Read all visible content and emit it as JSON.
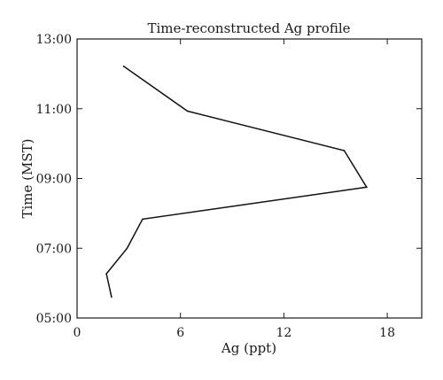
{
  "chart_data": {
    "type": "line",
    "title": "Time-reconstructed Ag profile",
    "xlabel": "Ag (ppt)",
    "ylabel": "Time (MST)",
    "xlim": [
      0,
      20
    ],
    "ylim": [
      "05:00",
      "13:00"
    ],
    "x_ticks": [
      {
        "value": 0,
        "label": "0"
      },
      {
        "value": 6,
        "label": "6"
      },
      {
        "value": 12,
        "label": "12"
      },
      {
        "value": 18,
        "label": "18"
      }
    ],
    "y_ticks": [
      {
        "value": "05:00",
        "label": "05:00"
      },
      {
        "value": "07:00",
        "label": "07:00"
      },
      {
        "value": "09:00",
        "label": "09:00"
      },
      {
        "value": "11:00",
        "label": "11:00"
      },
      {
        "value": "13:00",
        "label": "13:00"
      }
    ],
    "series": [
      {
        "color": "#111111",
        "points": [
          {
            "x": 2.0,
            "y": "05:36"
          },
          {
            "x": 1.7,
            "y": "06:16"
          },
          {
            "x": 2.9,
            "y": "07:00"
          },
          {
            "x": 3.8,
            "y": "07:50"
          },
          {
            "x": 16.8,
            "y": "08:45"
          },
          {
            "x": 15.5,
            "y": "09:48"
          },
          {
            "x": 6.4,
            "y": "10:56"
          },
          {
            "x": 2.7,
            "y": "12:13"
          }
        ]
      }
    ],
    "grid": false,
    "legend": "none"
  }
}
